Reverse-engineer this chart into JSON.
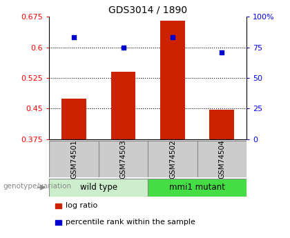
{
  "title": "GDS3014 / 1890",
  "samples": [
    "GSM74501",
    "GSM74503",
    "GSM74502",
    "GSM74504"
  ],
  "log_ratio": [
    0.475,
    0.54,
    0.665,
    0.448
  ],
  "percentile": [
    83,
    75,
    83,
    71
  ],
  "bar_baseline": 0.375,
  "ylim_left": [
    0.375,
    0.675
  ],
  "ylim_right": [
    0,
    100
  ],
  "yticks_left": [
    0.375,
    0.45,
    0.525,
    0.6,
    0.675
  ],
  "yticks_right": [
    0,
    25,
    50,
    75,
    100
  ],
  "yticklabels_right": [
    "0",
    "25",
    "50",
    "75",
    "100%"
  ],
  "grid_lines": [
    0.45,
    0.525,
    0.6
  ],
  "bar_color": "#cc2200",
  "marker_color": "#0000cc",
  "groups": [
    {
      "label": "wild type",
      "indices": [
        0,
        1
      ],
      "color": "#cceecc"
    },
    {
      "label": "mmi1 mutant",
      "indices": [
        2,
        3
      ],
      "color": "#44dd44"
    }
  ],
  "sample_box_color": "#cccccc",
  "group_label": "genotype/variation",
  "legend_items": [
    {
      "color": "#cc2200",
      "label": "log ratio"
    },
    {
      "color": "#0000cc",
      "label": "percentile rank within the sample"
    }
  ],
  "title_fontsize": 10,
  "tick_fontsize": 8,
  "sample_fontsize": 7.5,
  "group_fontsize": 8.5,
  "legend_fontsize": 8
}
